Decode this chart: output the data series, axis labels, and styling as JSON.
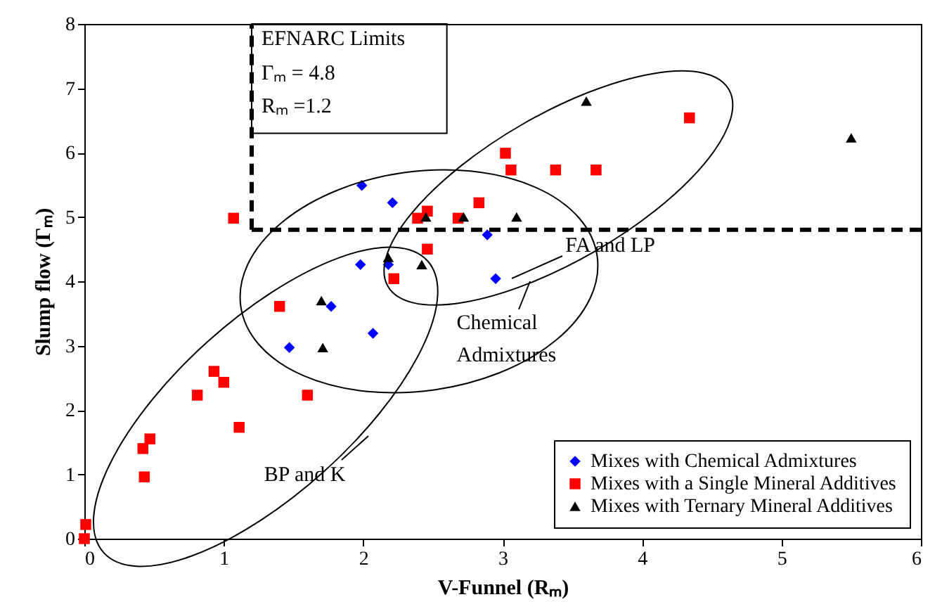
{
  "chart_data": {
    "type": "scatter",
    "xlabel": "V-Funnel  (Rₘ)",
    "ylabel": "Slump flow (Γₘ)",
    "xlim": [
      0,
      6
    ],
    "ylim": [
      0,
      8
    ],
    "xticks": [
      0,
      1,
      2,
      3,
      4,
      5,
      6
    ],
    "yticks": [
      0,
      1,
      2,
      3,
      4,
      5,
      6,
      7,
      8
    ],
    "grid": false,
    "legend": "bottom right",
    "series": [
      {
        "name": "Mixes with Chemical Admixtures",
        "color": "#0000ff",
        "marker": "diamond",
        "x": [
          1.99,
          2.21,
          2.89,
          1.98,
          2.18,
          2.95,
          1.77,
          2.07,
          1.47
        ],
        "values": [
          5.49,
          5.22,
          4.72,
          4.26,
          4.26,
          4.04,
          3.61,
          3.19,
          2.97
        ]
      },
      {
        "name": "Mixes with a Single Mineral Additives",
        "color": "#ff0000",
        "marker": "square",
        "x": [
          1.07,
          2.39,
          2.46,
          2.68,
          2.83,
          2.46,
          2.22,
          1.4,
          3.02,
          3.06,
          3.38,
          3.67,
          4.34,
          0.93,
          1.0,
          0.81,
          1.6,
          1.11,
          0.47,
          0.42,
          0.43,
          0.01,
          0.0
        ],
        "values": [
          4.98,
          4.98,
          5.09,
          4.98,
          5.22,
          4.5,
          4.04,
          3.61,
          5.99,
          5.73,
          5.73,
          5.73,
          6.54,
          2.6,
          2.43,
          2.23,
          2.23,
          1.73,
          1.55,
          1.4,
          0.96,
          0.22,
          0.0
        ]
      },
      {
        "name": "Mixes with Ternary Mineral Additives",
        "color": "#000000",
        "marker": "triangle",
        "x": [
          2.45,
          2.72,
          3.1,
          2.18,
          2.42,
          1.7,
          1.71,
          3.6,
          5.5
        ],
        "values": [
          5.0,
          5.0,
          5.0,
          4.37,
          4.26,
          3.7,
          2.97,
          6.8,
          6.23
        ]
      }
    ],
    "ref_lines": [
      {
        "axis": "y",
        "value": 4.8,
        "line_style": "dashed",
        "color": "#000000"
      },
      {
        "axis": "x",
        "value": 1.2,
        "line_style": "dashed",
        "color": "#000000"
      }
    ],
    "annotations": [
      "EFNARC Limits",
      "Γₘ = 4.8",
      "Rₘ =1.2",
      "BP and K",
      "FA and LP",
      "Chemical\nAdmixtures"
    ]
  }
}
